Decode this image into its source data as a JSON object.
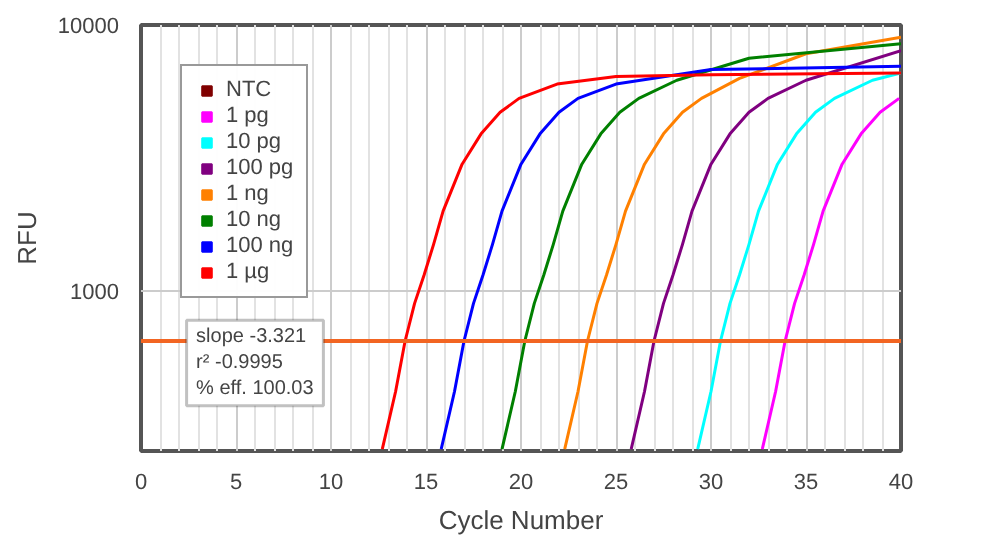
{
  "chart_data": {
    "type": "line",
    "xlabel": "Cycle Number",
    "ylabel": "RFU",
    "log": "y",
    "grid": true,
    "legend": "top left",
    "line_style": "solid",
    "marker": "none",
    "xlim": [
      0,
      40
    ],
    "xticks": [
      0,
      5,
      10,
      15,
      20,
      25,
      30,
      35,
      40
    ],
    "ylim": [
      251,
      10000
    ],
    "yticks": [
      1000,
      10000
    ],
    "ref_lines": [
      {
        "axis": "y",
        "value": 650,
        "color": "#f26522"
      }
    ],
    "annotations": [
      "slope -3.321",
      "r² -0.9995",
      "% eff. 100.03"
    ],
    "series": [
      {
        "name": "NTC",
        "color": "#800000"
      },
      {
        "name": "1 pg",
        "color": "#ff00ff",
        "x": [
          32.7,
          33.4,
          33.9,
          34.4,
          34.9,
          35.4,
          35.9,
          36.9,
          37.9,
          38.9,
          39.9
        ],
        "values": [
          255,
          420,
          650,
          900,
          1150,
          1500,
          2000,
          3000,
          3900,
          4700,
          5300
        ]
      },
      {
        "name": "10 pg",
        "color": "#00ffff",
        "x": [
          29.3,
          30,
          30.5,
          31,
          31.5,
          32,
          32.5,
          33.5,
          34.5,
          35.5,
          36.5,
          38.5,
          40
        ],
        "values": [
          255,
          420,
          650,
          900,
          1150,
          1500,
          2000,
          3000,
          3900,
          4700,
          5300,
          6200,
          6600
        ]
      },
      {
        "name": "100 pg",
        "color": "#800080",
        "x": [
          25.8,
          26.5,
          27,
          27.5,
          28,
          28.5,
          29,
          30,
          31,
          32,
          33,
          35,
          40
        ],
        "values": [
          255,
          420,
          650,
          900,
          1150,
          1500,
          2000,
          3000,
          3900,
          4700,
          5300,
          6200,
          8000
        ]
      },
      {
        "name": "1 ng",
        "color": "#ff8000",
        "x": [
          22.3,
          23,
          23.5,
          24,
          24.5,
          25,
          25.5,
          26.5,
          27.5,
          28.5,
          29.5,
          31.5,
          35,
          40
        ],
        "values": [
          255,
          420,
          650,
          900,
          1150,
          1500,
          2000,
          3000,
          3900,
          4700,
          5300,
          6300,
          7800,
          9000
        ]
      },
      {
        "name": "10 ng",
        "color": "#008000",
        "x": [
          19,
          19.7,
          20.2,
          20.7,
          21.2,
          21.7,
          22.2,
          23.2,
          24.2,
          25.2,
          26.2,
          28.2,
          32,
          40
        ],
        "values": [
          255,
          420,
          650,
          900,
          1150,
          1500,
          2000,
          3000,
          3900,
          4700,
          5300,
          6200,
          7500,
          8500
        ]
      },
      {
        "name": "100 ng",
        "color": "#0000ff",
        "x": [
          15.8,
          16.5,
          17,
          17.5,
          18,
          18.5,
          19,
          20,
          21,
          22,
          23,
          25,
          30,
          40
        ],
        "values": [
          255,
          420,
          650,
          900,
          1150,
          1500,
          2000,
          3000,
          3900,
          4700,
          5300,
          6000,
          6800,
          7000
        ]
      },
      {
        "name": "1 µg",
        "color": "#ff0000",
        "x": [
          12.7,
          13.4,
          13.9,
          14.4,
          14.9,
          15.4,
          15.9,
          16.9,
          17.9,
          18.9,
          19.9,
          21.9,
          25,
          30,
          40
        ],
        "values": [
          255,
          420,
          650,
          900,
          1150,
          1500,
          2000,
          3000,
          3900,
          4700,
          5300,
          6000,
          6400,
          6500,
          6600
        ]
      }
    ]
  }
}
